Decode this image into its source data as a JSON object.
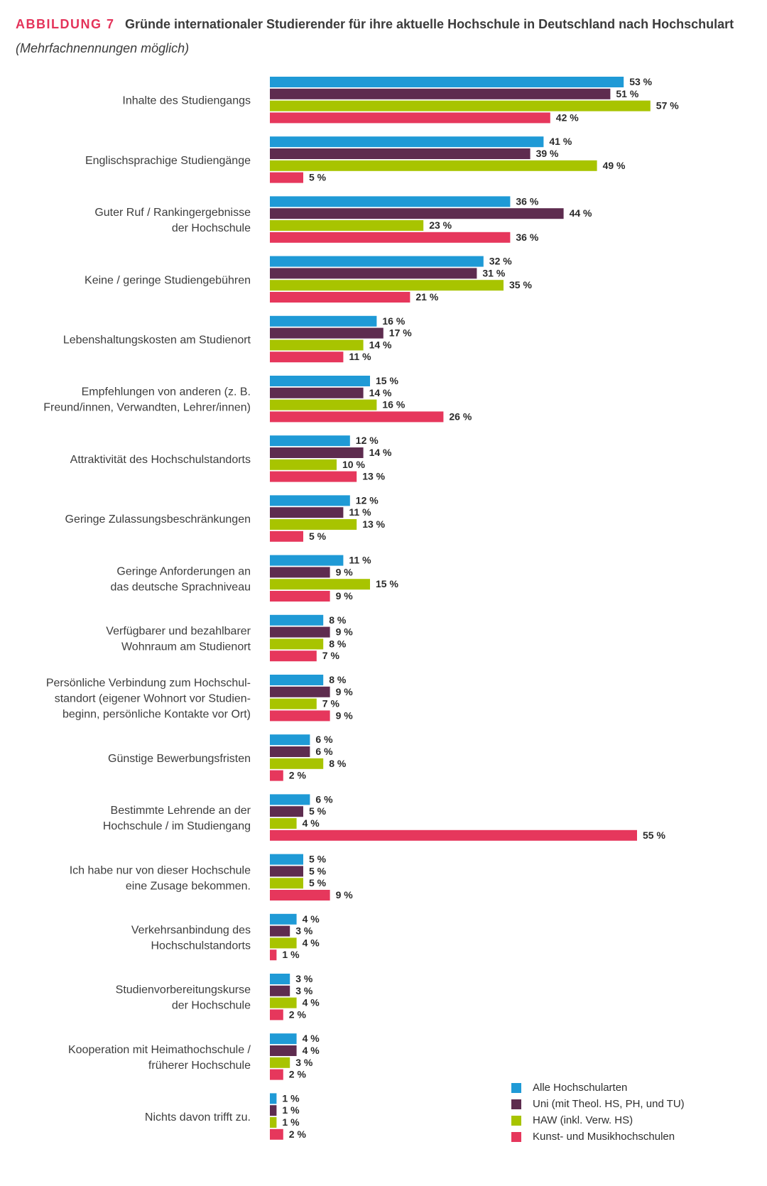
{
  "header": {
    "figure_label": "ABBILDUNG 7",
    "title": "Gründe internationaler Studierender für ihre aktuelle Hochschule in Deutschland nach Hochschulart",
    "subtitle": "(Mehrfachnennungen möglich)"
  },
  "colors": {
    "alle": "#1f9ad6",
    "uni": "#5e2c4f",
    "haw": "#a8c400",
    "kunst": "#e6375c"
  },
  "chart_data": {
    "type": "bar",
    "orientation": "horizontal",
    "value_suffix": " %",
    "xlim": [
      0,
      60
    ],
    "grid": false,
    "legend_position": "bottom-right",
    "categories": [
      [
        "Inhalte des Studiengangs"
      ],
      [
        "Englischsprachige Studiengänge"
      ],
      [
        "Guter Ruf / Rankingergebnisse",
        "der Hochschule"
      ],
      [
        "Keine / geringe Studiengebühren"
      ],
      [
        "Lebenshaltungskosten am Studienort"
      ],
      [
        "Empfehlungen von anderen (z. B.",
        "Freund/innen, Verwandten, Lehrer/innen)"
      ],
      [
        "Attraktivität des Hochschulstandorts"
      ],
      [
        "Geringe Zulassungsbeschränkungen"
      ],
      [
        "Geringe Anforderungen an",
        "das deutsche Sprachniveau"
      ],
      [
        "Verfügbarer und bezahlbarer",
        "Wohnraum am Studienort"
      ],
      [
        "Persönliche Verbindung zum Hochschul-",
        "standort (eigener Wohnort vor Studien-",
        "beginn, persönliche Kontakte vor Ort)"
      ],
      [
        "Günstige Bewerbungsfristen"
      ],
      [
        "Bestimmte Lehrende an der",
        "Hochschule / im Studiengang"
      ],
      [
        "Ich habe nur von dieser Hochschule",
        "eine Zusage bekommen."
      ],
      [
        "Verkehrsanbindung des",
        "Hochschulstandorts"
      ],
      [
        "Studienvorbereitungskurse",
        "der Hochschule"
      ],
      [
        "Kooperation mit Heimathochschule /",
        "früherer Hochschule"
      ],
      [
        "Nichts davon trifft zu."
      ]
    ],
    "series": [
      {
        "name": "Alle Hochschularten",
        "color_key": "alle",
        "values": [
          53,
          41,
          36,
          32,
          16,
          15,
          12,
          12,
          11,
          8,
          8,
          6,
          6,
          5,
          4,
          3,
          4,
          1
        ]
      },
      {
        "name": "Uni (mit Theol. HS, PH, und TU)",
        "color_key": "uni",
        "values": [
          51,
          39,
          44,
          31,
          17,
          14,
          14,
          11,
          9,
          9,
          9,
          6,
          5,
          5,
          3,
          3,
          4,
          1
        ]
      },
      {
        "name": "HAW (inkl. Verw. HS)",
        "color_key": "haw",
        "values": [
          57,
          49,
          23,
          35,
          14,
          16,
          10,
          13,
          15,
          8,
          7,
          8,
          4,
          5,
          4,
          4,
          3,
          1
        ]
      },
      {
        "name": "Kunst- und Musikhochschulen",
        "color_key": "kunst",
        "values": [
          42,
          5,
          36,
          21,
          11,
          26,
          13,
          5,
          9,
          7,
          9,
          2,
          55,
          9,
          1,
          2,
          2,
          2
        ]
      }
    ]
  }
}
